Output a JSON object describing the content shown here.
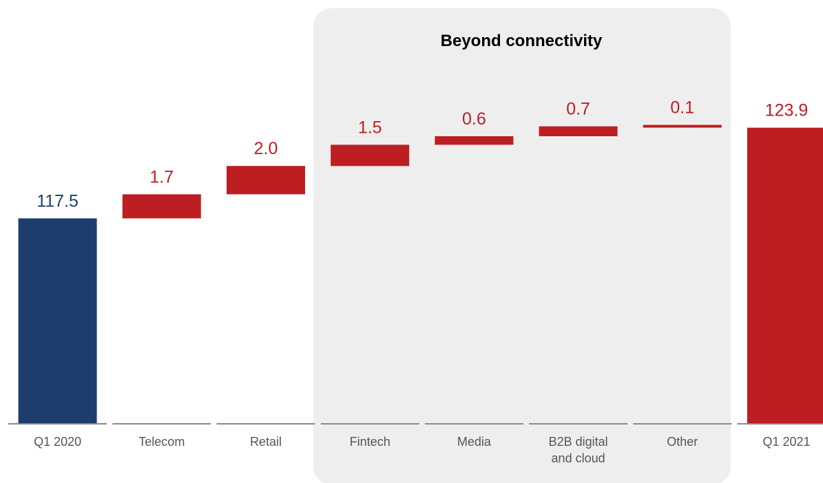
{
  "chart_data": {
    "type": "bar",
    "subtype": "waterfall",
    "categories": [
      "Q1 2020",
      "Telecom",
      "Retail",
      "Fintech",
      "Media",
      "B2B digital\nand cloud",
      "Other",
      "Q1 2021"
    ],
    "values": [
      117.5,
      1.7,
      2.0,
      1.5,
      0.6,
      0.7,
      0.1,
      123.9
    ],
    "value_labels": [
      "117.5",
      "1.7",
      "2.0",
      "1.5",
      "0.6",
      "0.7",
      "0.1",
      "123.9"
    ],
    "bar_kinds": [
      "total",
      "delta",
      "delta",
      "delta",
      "delta",
      "delta",
      "delta",
      "total"
    ],
    "ylim": [
      103,
      125
    ],
    "grid": false,
    "group": {
      "title": "Beyond connectivity",
      "categories": [
        "Fintech",
        "Media",
        "B2B digital\nand cloud",
        "Other"
      ]
    },
    "colors": {
      "start_total": "#1c3d6e",
      "delta": "#bd1e22",
      "end_total": "#bd1e22",
      "start_label": "#1c3d6e",
      "delta_label": "#bd1e22",
      "group_title": "#bd1e22",
      "group_background": "#eeeeee",
      "axis_line": "#8a8a8a"
    }
  }
}
